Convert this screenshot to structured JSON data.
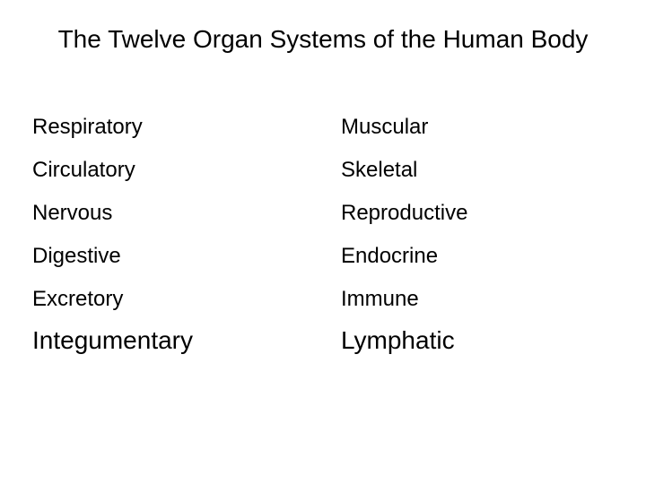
{
  "title": "The Twelve Organ Systems of the Human Body",
  "columns": {
    "left": [
      {
        "label": "Respiratory",
        "large": false
      },
      {
        "label": "Circulatory",
        "large": false
      },
      {
        "label": "Nervous",
        "large": false
      },
      {
        "label": "Digestive",
        "large": false
      },
      {
        "label": "Excretory",
        "large": false
      },
      {
        "label": "Integumentary",
        "large": true
      }
    ],
    "right": [
      {
        "label": "Muscular",
        "large": false
      },
      {
        "label": "Skeletal",
        "large": false
      },
      {
        "label": "Reproductive",
        "large": false
      },
      {
        "label": "Endocrine",
        "large": false
      },
      {
        "label": "Immune",
        "large": false
      },
      {
        "label": "Lymphatic",
        "large": true
      }
    ]
  },
  "style": {
    "background_color": "#ffffff",
    "text_color": "#000000",
    "title_fontsize": 28,
    "item_fontsize": 24,
    "item_large_fontsize": 28,
    "font_family": "Arial"
  }
}
